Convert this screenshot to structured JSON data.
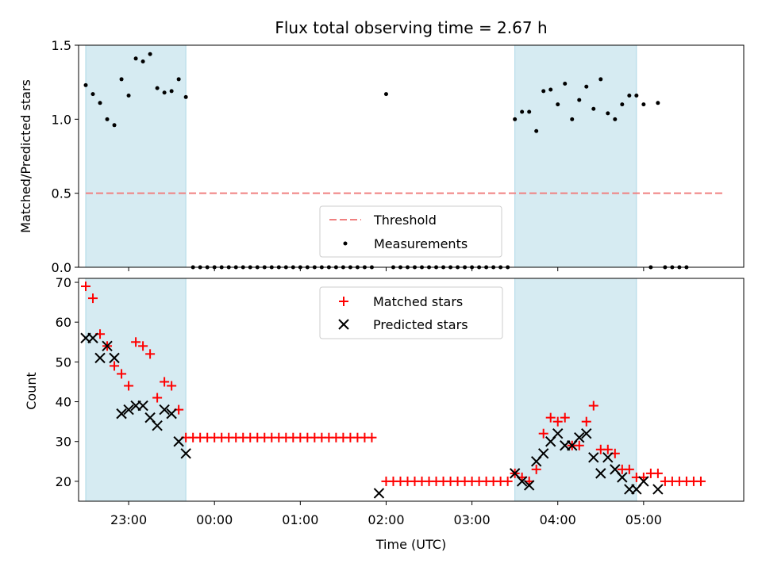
{
  "chart_data": [
    {
      "type": "scatter",
      "title": "Flux total observing time = 2.67 h",
      "xlabel": "",
      "ylabel": "Matched/Predicted stars",
      "xlim": [
        "22:25",
        "06:10"
      ],
      "ylim": [
        0,
        1.5
      ],
      "yticks": [
        "0.0",
        "0.5",
        "1.0",
        "1.5"
      ],
      "shaded_intervals": [
        [
          "22:30",
          "23:40"
        ],
        [
          "03:30",
          "04:55"
        ]
      ],
      "shade_color": "#add8e6",
      "threshold": {
        "name": "Threshold",
        "value": 0.5,
        "x_start": "22:30",
        "x_end": "05:55",
        "color": "#f08080"
      },
      "series": [
        {
          "name": "Measurements",
          "color": "#000000",
          "points": [
            [
              "22:30",
              1.23
            ],
            [
              "22:35",
              1.17
            ],
            [
              "22:40",
              1.11
            ],
            [
              "22:45",
              1.0
            ],
            [
              "22:50",
              0.96
            ],
            [
              "22:55",
              1.27
            ],
            [
              "23:00",
              1.16
            ],
            [
              "23:05",
              1.41
            ],
            [
              "23:10",
              1.39
            ],
            [
              "23:15",
              1.44
            ],
            [
              "23:20",
              1.21
            ],
            [
              "23:25",
              1.18
            ],
            [
              "23:30",
              1.19
            ],
            [
              "23:35",
              1.27
            ],
            [
              "23:40",
              1.15
            ],
            [
              "23:45",
              0
            ],
            [
              "23:50",
              0
            ],
            [
              "23:55",
              0
            ],
            [
              "00:00",
              0
            ],
            [
              "00:05",
              0
            ],
            [
              "00:10",
              0
            ],
            [
              "00:15",
              0
            ],
            [
              "00:20",
              0
            ],
            [
              "00:25",
              0
            ],
            [
              "00:30",
              0
            ],
            [
              "00:35",
              0
            ],
            [
              "00:40",
              0
            ],
            [
              "00:45",
              0
            ],
            [
              "00:50",
              0
            ],
            [
              "00:55",
              0
            ],
            [
              "01:00",
              0
            ],
            [
              "01:05",
              0
            ],
            [
              "01:10",
              0
            ],
            [
              "01:15",
              0
            ],
            [
              "01:20",
              0
            ],
            [
              "01:25",
              0
            ],
            [
              "01:30",
              0
            ],
            [
              "01:35",
              0
            ],
            [
              "01:40",
              0
            ],
            [
              "01:45",
              0
            ],
            [
              "01:50",
              0
            ],
            [
              "02:00",
              1.17
            ],
            [
              "02:05",
              0
            ],
            [
              "02:10",
              0
            ],
            [
              "02:15",
              0
            ],
            [
              "02:20",
              0
            ],
            [
              "02:25",
              0
            ],
            [
              "02:30",
              0
            ],
            [
              "02:35",
              0
            ],
            [
              "02:40",
              0
            ],
            [
              "02:45",
              0
            ],
            [
              "02:50",
              0
            ],
            [
              "02:55",
              0
            ],
            [
              "03:00",
              0
            ],
            [
              "03:05",
              0
            ],
            [
              "03:10",
              0
            ],
            [
              "03:15",
              0
            ],
            [
              "03:20",
              0
            ],
            [
              "03:25",
              0
            ],
            [
              "03:30",
              1.0
            ],
            [
              "03:35",
              1.05
            ],
            [
              "03:40",
              1.05
            ],
            [
              "03:45",
              0.92
            ],
            [
              "03:50",
              1.19
            ],
            [
              "03:55",
              1.2
            ],
            [
              "04:00",
              1.1
            ],
            [
              "04:05",
              1.24
            ],
            [
              "04:10",
              1.0
            ],
            [
              "04:15",
              1.13
            ],
            [
              "04:20",
              1.22
            ],
            [
              "04:25",
              1.07
            ],
            [
              "04:30",
              1.27
            ],
            [
              "04:35",
              1.04
            ],
            [
              "04:40",
              1.0
            ],
            [
              "04:45",
              1.1
            ],
            [
              "04:50",
              1.16
            ],
            [
              "04:55",
              1.16
            ],
            [
              "05:00",
              1.1
            ],
            [
              "05:05",
              0
            ],
            [
              "05:10",
              1.11
            ],
            [
              "05:15",
              0
            ],
            [
              "05:20",
              0
            ],
            [
              "05:25",
              0
            ],
            [
              "05:30",
              0
            ]
          ]
        }
      ],
      "legend": {
        "placement": "bottom-center",
        "entries": [
          "Threshold",
          "Measurements"
        ]
      }
    },
    {
      "type": "scatter",
      "title": "",
      "xlabel": "Time (UTC)",
      "ylabel": "Count",
      "xlim": [
        "22:25",
        "06:10"
      ],
      "ylim": [
        15,
        71
      ],
      "yticks": [
        "20",
        "30",
        "40",
        "50",
        "60",
        "70"
      ],
      "xticks": [
        "23:00",
        "00:00",
        "01:00",
        "02:00",
        "03:00",
        "04:00",
        "05:00"
      ],
      "shaded_intervals": [
        [
          "22:30",
          "23:40"
        ],
        [
          "03:30",
          "04:55"
        ]
      ],
      "shade_color": "#add8e6",
      "series": [
        {
          "name": "Matched stars",
          "marker": "plus",
          "color": "#ff0000",
          "points": [
            [
              "22:30",
              69
            ],
            [
              "22:35",
              66
            ],
            [
              "22:40",
              57
            ],
            [
              "22:45",
              54
            ],
            [
              "22:50",
              49
            ],
            [
              "22:55",
              47
            ],
            [
              "23:00",
              44
            ],
            [
              "23:05",
              55
            ],
            [
              "23:10",
              54
            ],
            [
              "23:15",
              52
            ],
            [
              "23:20",
              41
            ],
            [
              "23:25",
              45
            ],
            [
              "23:30",
              44
            ],
            [
              "23:35",
              38
            ],
            [
              "23:40",
              31
            ],
            [
              "23:45",
              31
            ],
            [
              "23:50",
              31
            ],
            [
              "23:55",
              31
            ],
            [
              "00:00",
              31
            ],
            [
              "00:05",
              31
            ],
            [
              "00:10",
              31
            ],
            [
              "00:15",
              31
            ],
            [
              "00:20",
              31
            ],
            [
              "00:25",
              31
            ],
            [
              "00:30",
              31
            ],
            [
              "00:35",
              31
            ],
            [
              "00:40",
              31
            ],
            [
              "00:45",
              31
            ],
            [
              "00:50",
              31
            ],
            [
              "00:55",
              31
            ],
            [
              "01:00",
              31
            ],
            [
              "01:05",
              31
            ],
            [
              "01:10",
              31
            ],
            [
              "01:15",
              31
            ],
            [
              "01:20",
              31
            ],
            [
              "01:25",
              31
            ],
            [
              "01:30",
              31
            ],
            [
              "01:35",
              31
            ],
            [
              "01:40",
              31
            ],
            [
              "01:45",
              31
            ],
            [
              "01:50",
              31
            ],
            [
              "02:00",
              20
            ],
            [
              "02:05",
              20
            ],
            [
              "02:10",
              20
            ],
            [
              "02:15",
              20
            ],
            [
              "02:20",
              20
            ],
            [
              "02:25",
              20
            ],
            [
              "02:30",
              20
            ],
            [
              "02:35",
              20
            ],
            [
              "02:40",
              20
            ],
            [
              "02:45",
              20
            ],
            [
              "02:50",
              20
            ],
            [
              "02:55",
              20
            ],
            [
              "03:00",
              20
            ],
            [
              "03:05",
              20
            ],
            [
              "03:10",
              20
            ],
            [
              "03:15",
              20
            ],
            [
              "03:20",
              20
            ],
            [
              "03:25",
              20
            ],
            [
              "03:30",
              22
            ],
            [
              "03:35",
              21
            ],
            [
              "03:40",
              20
            ],
            [
              "03:45",
              23
            ],
            [
              "03:50",
              32
            ],
            [
              "03:55",
              36
            ],
            [
              "04:00",
              35
            ],
            [
              "04:05",
              36
            ],
            [
              "04:10",
              29
            ],
            [
              "04:15",
              29
            ],
            [
              "04:20",
              35
            ],
            [
              "04:25",
              39
            ],
            [
              "04:30",
              28
            ],
            [
              "04:35",
              28
            ],
            [
              "04:40",
              27
            ],
            [
              "04:45",
              23
            ],
            [
              "04:50",
              23
            ],
            [
              "04:55",
              21
            ],
            [
              "05:00",
              21
            ],
            [
              "05:05",
              22
            ],
            [
              "05:10",
              22
            ],
            [
              "05:15",
              20
            ],
            [
              "05:20",
              20
            ],
            [
              "05:25",
              20
            ],
            [
              "05:30",
              20
            ],
            [
              "05:35",
              20
            ],
            [
              "05:40",
              20
            ]
          ]
        },
        {
          "name": "Predicted stars",
          "marker": "x",
          "color": "#000000",
          "points": [
            [
              "22:30",
              56
            ],
            [
              "22:35",
              56
            ],
            [
              "22:40",
              51
            ],
            [
              "22:45",
              54
            ],
            [
              "22:50",
              51
            ],
            [
              "22:55",
              37
            ],
            [
              "23:00",
              38
            ],
            [
              "23:05",
              39
            ],
            [
              "23:10",
              39
            ],
            [
              "23:15",
              36
            ],
            [
              "23:20",
              34
            ],
            [
              "23:25",
              38
            ],
            [
              "23:30",
              37
            ],
            [
              "23:35",
              30
            ],
            [
              "23:40",
              27
            ],
            [
              "01:55",
              17
            ],
            [
              "03:30",
              22
            ],
            [
              "03:35",
              20
            ],
            [
              "03:40",
              19
            ],
            [
              "03:45",
              25
            ],
            [
              "03:50",
              27
            ],
            [
              "03:55",
              30
            ],
            [
              "04:00",
              32
            ],
            [
              "04:05",
              29
            ],
            [
              "04:10",
              29
            ],
            [
              "04:15",
              31
            ],
            [
              "04:20",
              32
            ],
            [
              "04:25",
              26
            ],
            [
              "04:30",
              22
            ],
            [
              "04:35",
              26
            ],
            [
              "04:40",
              23
            ],
            [
              "04:45",
              21
            ],
            [
              "04:50",
              18
            ],
            [
              "04:55",
              18
            ],
            [
              "05:00",
              20
            ],
            [
              "05:10",
              18
            ]
          ]
        }
      ],
      "legend": {
        "placement": "top-center",
        "entries": [
          "Matched stars",
          "Predicted stars"
        ]
      }
    }
  ]
}
